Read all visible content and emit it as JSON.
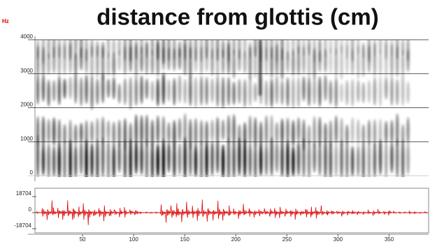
{
  "title": "distance from glottis (cm)",
  "unit_label": "Hz",
  "spectrogram": {
    "ylim": [
      0,
      4000
    ],
    "yticks": [
      0,
      1000,
      2000,
      3000,
      4000
    ]
  },
  "waveform": {
    "ylim": [
      -18704,
      18704
    ],
    "yticks": [
      18704,
      0,
      -18704
    ]
  },
  "time_axis": {
    "xlim": [
      0,
      390
    ],
    "xticks": [
      50,
      100,
      150,
      200,
      250,
      300,
      350
    ]
  }
}
